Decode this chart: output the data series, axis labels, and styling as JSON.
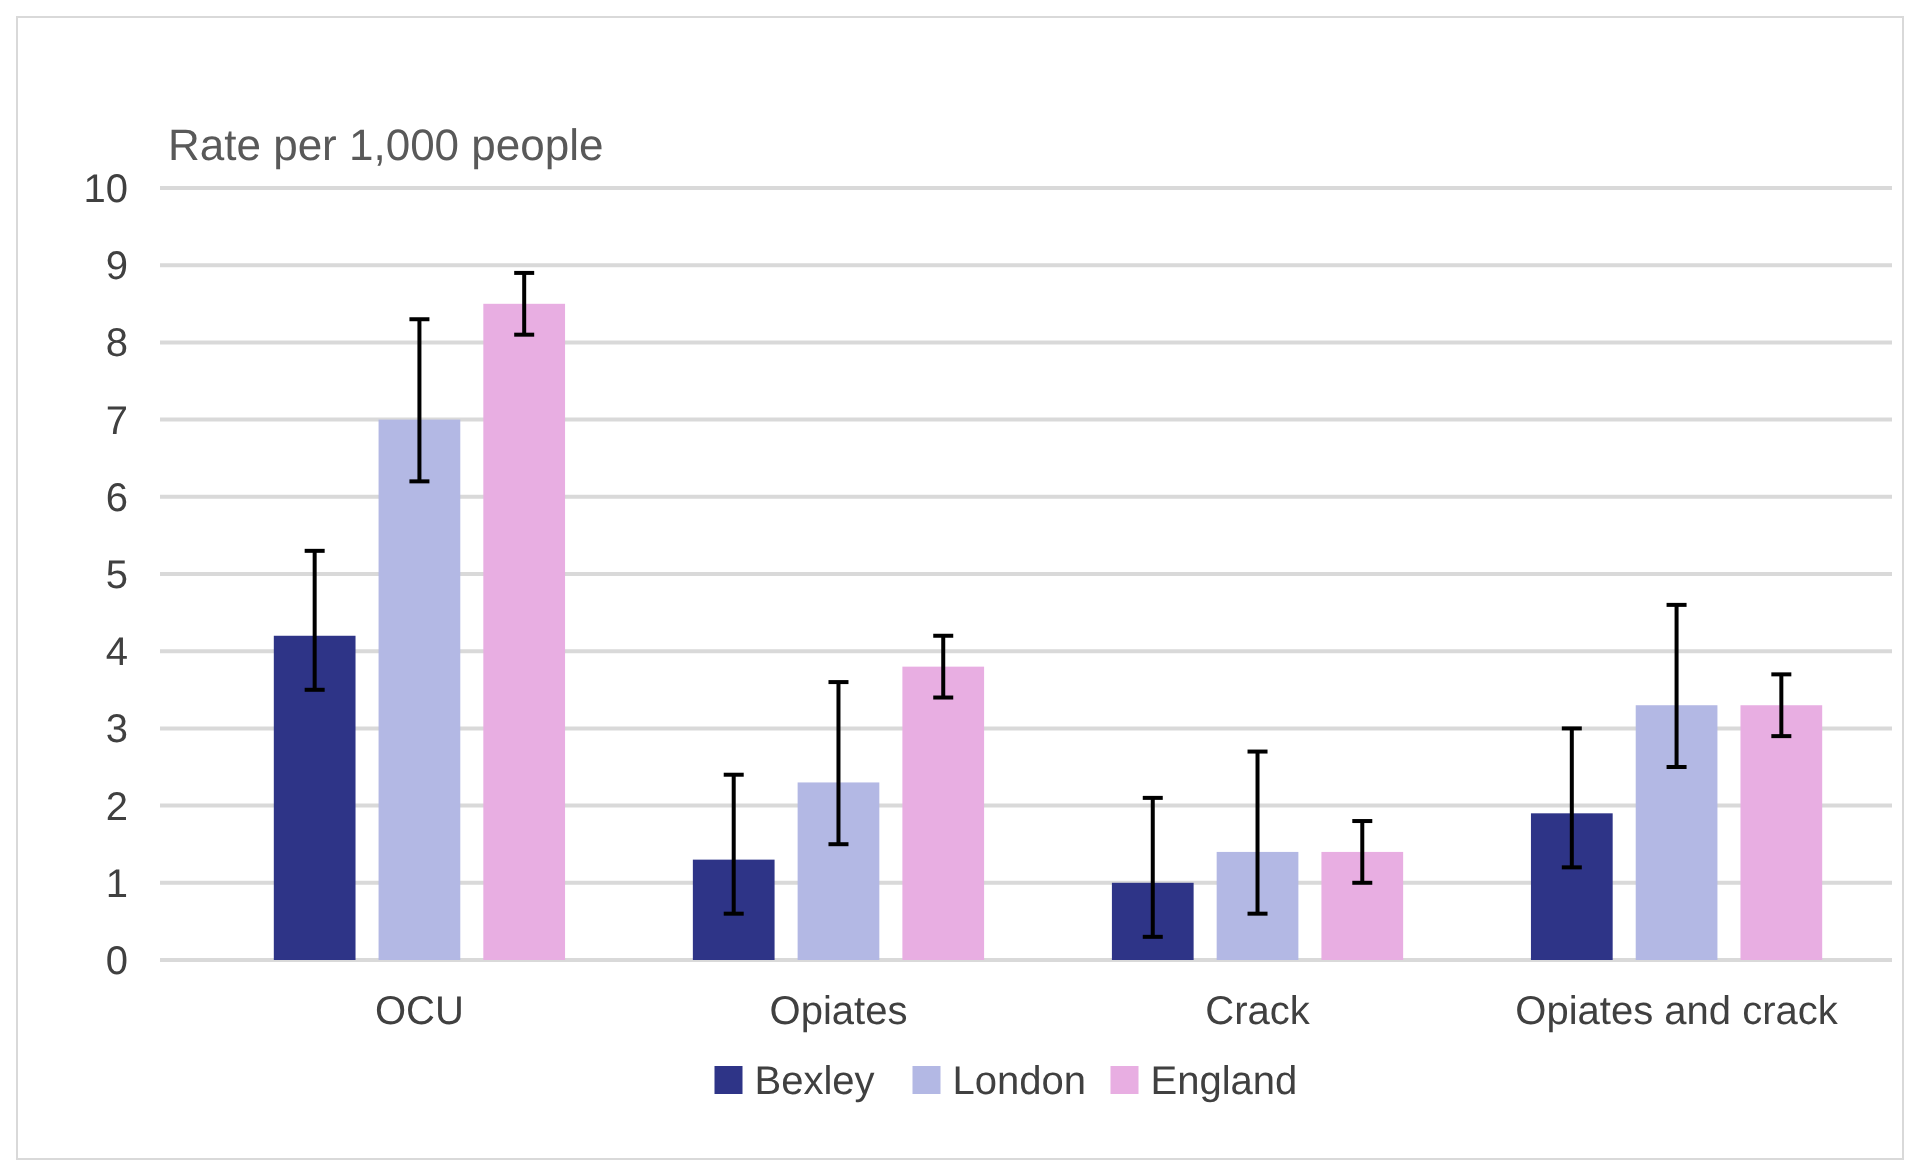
{
  "chart_data": {
    "type": "bar",
    "ylabel": "Rate per 1,000 people",
    "categories": [
      "OCU",
      "Opiates",
      "Crack",
      "Opiates and crack"
    ],
    "series": [
      {
        "name": "Bexley",
        "color": "#2e3487",
        "values": [
          4.2,
          1.3,
          1.0,
          1.9
        ],
        "errors": [
          [
            3.5,
            5.3
          ],
          [
            0.6,
            2.4
          ],
          [
            0.3,
            2.1
          ],
          [
            1.2,
            3.0
          ]
        ]
      },
      {
        "name": "London",
        "color": "#b3b8e4",
        "values": [
          7.0,
          2.3,
          1.4,
          3.3
        ],
        "errors": [
          [
            6.2,
            8.3
          ],
          [
            1.5,
            3.6
          ],
          [
            0.6,
            2.7
          ],
          [
            2.5,
            4.6
          ]
        ]
      },
      {
        "name": "England",
        "color": "#e8aee2",
        "values": [
          8.5,
          3.8,
          1.4,
          3.3
        ],
        "errors": [
          [
            8.1,
            8.9
          ],
          [
            3.4,
            4.2
          ],
          [
            1.0,
            1.8
          ],
          [
            2.9,
            3.7
          ]
        ]
      }
    ],
    "ylim": [
      0,
      10
    ],
    "yticks": [
      0,
      1,
      2,
      3,
      4,
      5,
      6,
      7,
      8,
      9,
      10
    ],
    "grid": "y",
    "legend": "bottom"
  }
}
